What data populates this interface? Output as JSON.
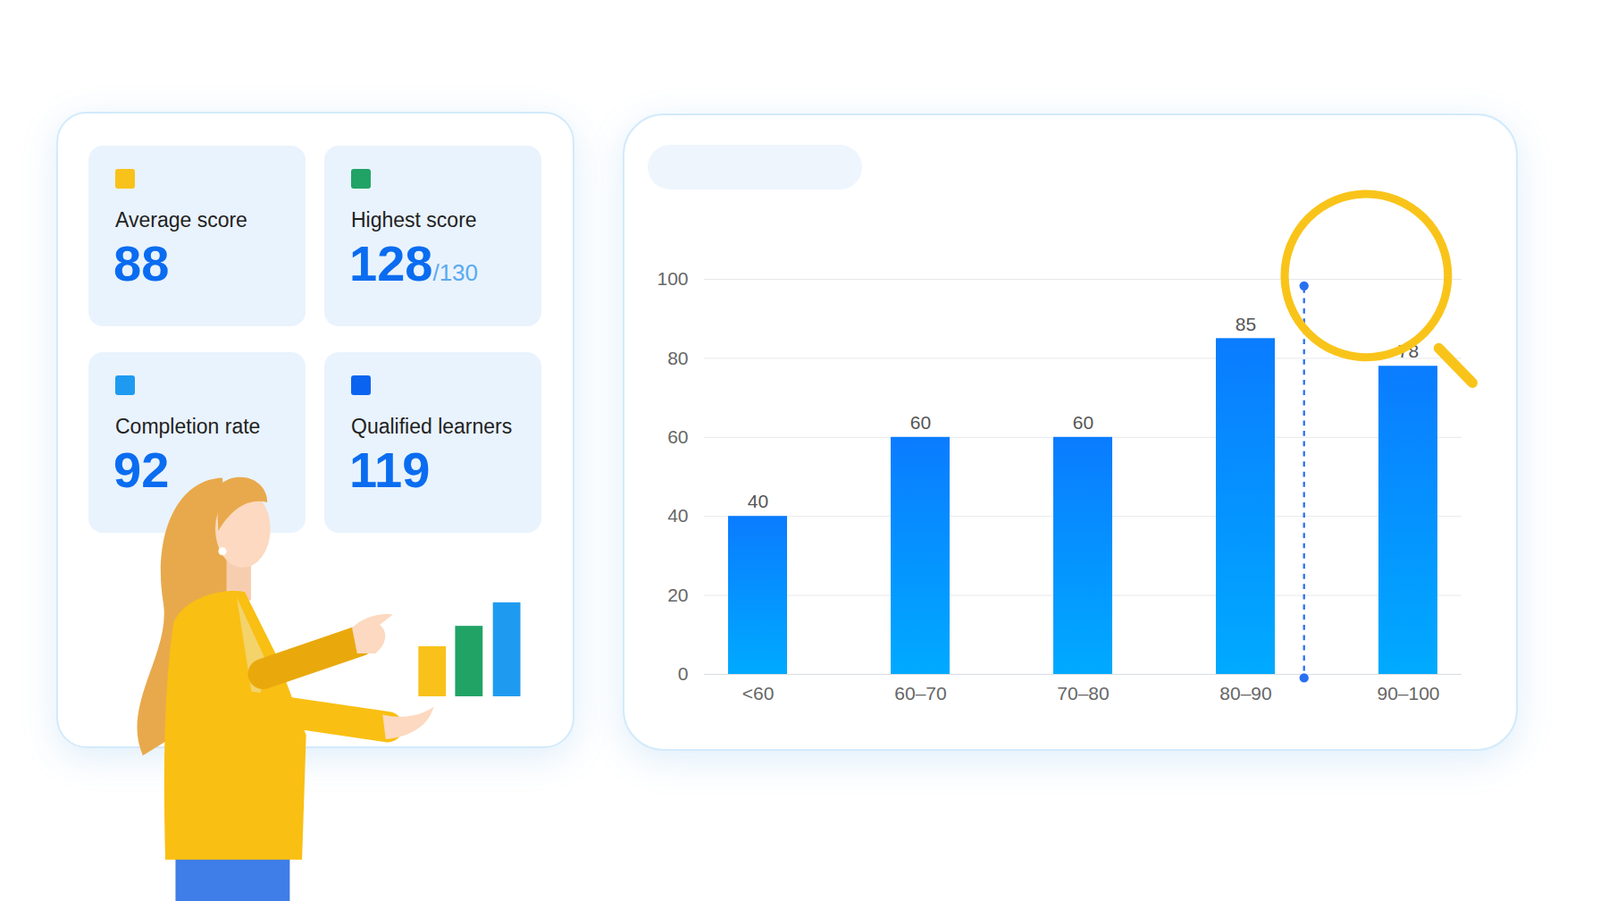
{
  "cards": [
    {
      "label": "Average score",
      "value": 88,
      "color": "#f9c21a"
    },
    {
      "label": "Highest score",
      "value": 128,
      "total_label": "/130",
      "color": "#21a366"
    },
    {
      "label": "Completion rate",
      "value": 92,
      "color": "#1e9bf0"
    },
    {
      "label": "Qualified learners",
      "value": 119,
      "color": "#0a64f0"
    }
  ],
  "chart_data": {
    "type": "bar",
    "categories": [
      "<60",
      "60–70",
      "70–80",
      "80–90",
      "90–100"
    ],
    "values": [
      40,
      60,
      60,
      85,
      78
    ],
    "color": "#0a7cff",
    "ylim": [
      0,
      100
    ],
    "yticks": [
      0,
      20,
      40,
      60,
      80,
      100
    ],
    "grid": true,
    "data_labels": true
  }
}
